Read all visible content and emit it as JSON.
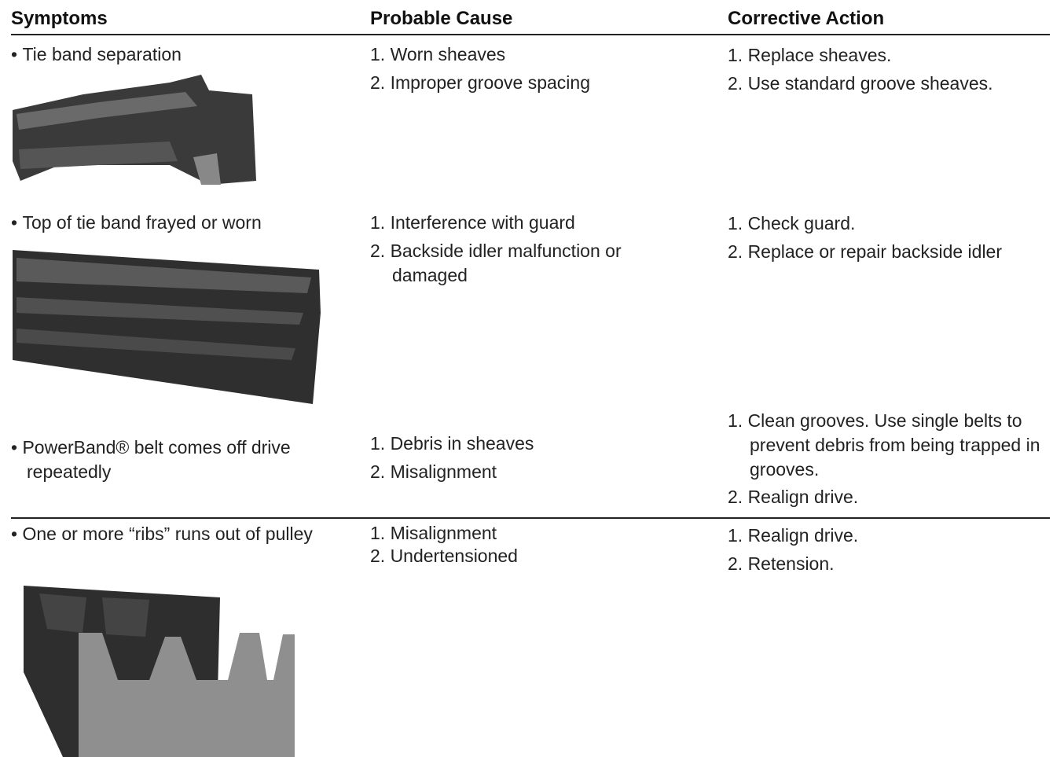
{
  "header": {
    "columns": [
      "Symptoms",
      "Probable Cause",
      "Corrective Action"
    ]
  },
  "rows": [
    {
      "symptom": "Tie band separation",
      "causes": [
        "1. Worn sheaves",
        "2. Improper groove spacing"
      ],
      "actions": [
        "1. Replace sheaves.",
        "2. Use standard groove sheaves."
      ]
    },
    {
      "symptom": "Top of tie band frayed or worn",
      "causes": [
        "1. Interference with guard",
        "2. Backside idler malfunction or damaged"
      ],
      "actions": [
        "1. Check guard.",
        "2. Replace or repair backside idler"
      ]
    },
    {
      "symptom": "PowerBand® belt comes off drive repeatedly",
      "causes": [
        "1. Debris in sheaves",
        "2. Misalignment"
      ],
      "actions": [
        "1. Clean grooves. Use single belts to prevent debris from being trapped in grooves.",
        "2. Realign drive."
      ]
    },
    {
      "symptom": "One or more “ribs” runs out of pulley",
      "causes": [
        "1. Misalignment",
        "2. Undertensioned"
      ],
      "actions": [
        "1. Realign drive.",
        "2. Retension."
      ]
    }
  ]
}
